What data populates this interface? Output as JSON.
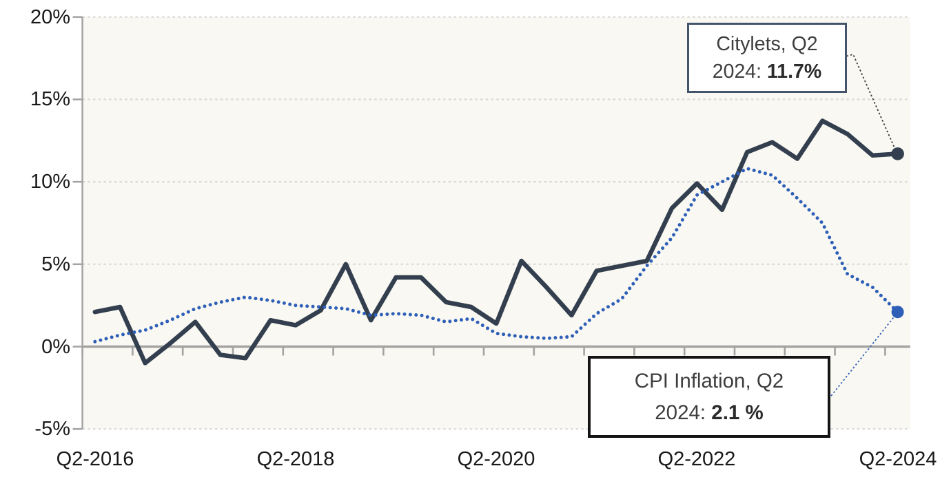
{
  "chart_data": {
    "type": "line",
    "title": "",
    "xlabel": "",
    "ylabel": "",
    "ylim": [
      -5,
      20
    ],
    "yticks": [
      20,
      15,
      10,
      5,
      0,
      -5
    ],
    "ytick_labels": [
      "20%",
      "15%",
      "10%",
      "5%",
      "0%",
      "-5%"
    ],
    "grid": "horizontal-dotted",
    "legend_position": "none",
    "categories": [
      "Q2-2016",
      "Q3-2016",
      "Q4-2016",
      "Q1-2017",
      "Q2-2017",
      "Q3-2017",
      "Q4-2017",
      "Q1-2018",
      "Q2-2018",
      "Q3-2018",
      "Q4-2018",
      "Q1-2019",
      "Q2-2019",
      "Q3-2019",
      "Q4-2019",
      "Q1-2020",
      "Q2-2020",
      "Q3-2020",
      "Q4-2020",
      "Q1-2021",
      "Q2-2021",
      "Q3-2021",
      "Q4-2021",
      "Q1-2022",
      "Q2-2022",
      "Q3-2022",
      "Q4-2022",
      "Q1-2023",
      "Q2-2023",
      "Q3-2023",
      "Q4-2023",
      "Q1-2024",
      "Q2-2024"
    ],
    "xtick_indices": [
      0,
      8,
      16,
      24,
      32
    ],
    "xtick_labels": [
      "Q2-2016",
      "Q2-2018",
      "Q2-2020",
      "Q2-2022",
      "Q2-2024"
    ],
    "series": [
      {
        "name": "Citylets",
        "style": "solid",
        "color": "#333F4E",
        "end_marker": true,
        "values": [
          2.1,
          2.4,
          -1.0,
          0.2,
          1.5,
          -0.5,
          -0.7,
          1.6,
          1.3,
          2.2,
          5.0,
          1.6,
          4.2,
          4.2,
          2.7,
          2.4,
          1.4,
          5.2,
          3.6,
          1.9,
          4.6,
          4.9,
          5.2,
          8.4,
          9.9,
          8.3,
          11.8,
          12.4,
          11.4,
          13.7,
          12.9,
          11.6,
          11.7
        ]
      },
      {
        "name": "CPI Inflation",
        "style": "dotted",
        "color": "#2E5FB7",
        "end_marker": true,
        "values": [
          0.3,
          0.7,
          1.0,
          1.6,
          2.3,
          2.7,
          3.0,
          2.8,
          2.5,
          2.4,
          2.3,
          1.9,
          2.0,
          1.9,
          1.5,
          1.7,
          0.8,
          0.6,
          0.5,
          0.6,
          2.0,
          2.9,
          4.9,
          6.6,
          9.2,
          10.0,
          10.8,
          10.4,
          9.0,
          7.5,
          4.4,
          3.6,
          2.1
        ]
      }
    ],
    "annotations": [
      {
        "id": "citylets",
        "line1": "Citylets, Q2",
        "line2_prefix": "2024: ",
        "value": "11.7%"
      },
      {
        "id": "cpi",
        "line1": "CPI Inflation, Q2",
        "line2_prefix": "2024: ",
        "value": "2.1 %"
      }
    ],
    "colors": {
      "plot_background": "#F9F8F2",
      "gridline": "#D9D9D9",
      "axis": "#A3A3A3",
      "citylets_line": "#333F4E",
      "cpi_line": "#2E5FB7",
      "citylets_box_border": "#44546A",
      "cpi_box_border": "#141414"
    }
  }
}
